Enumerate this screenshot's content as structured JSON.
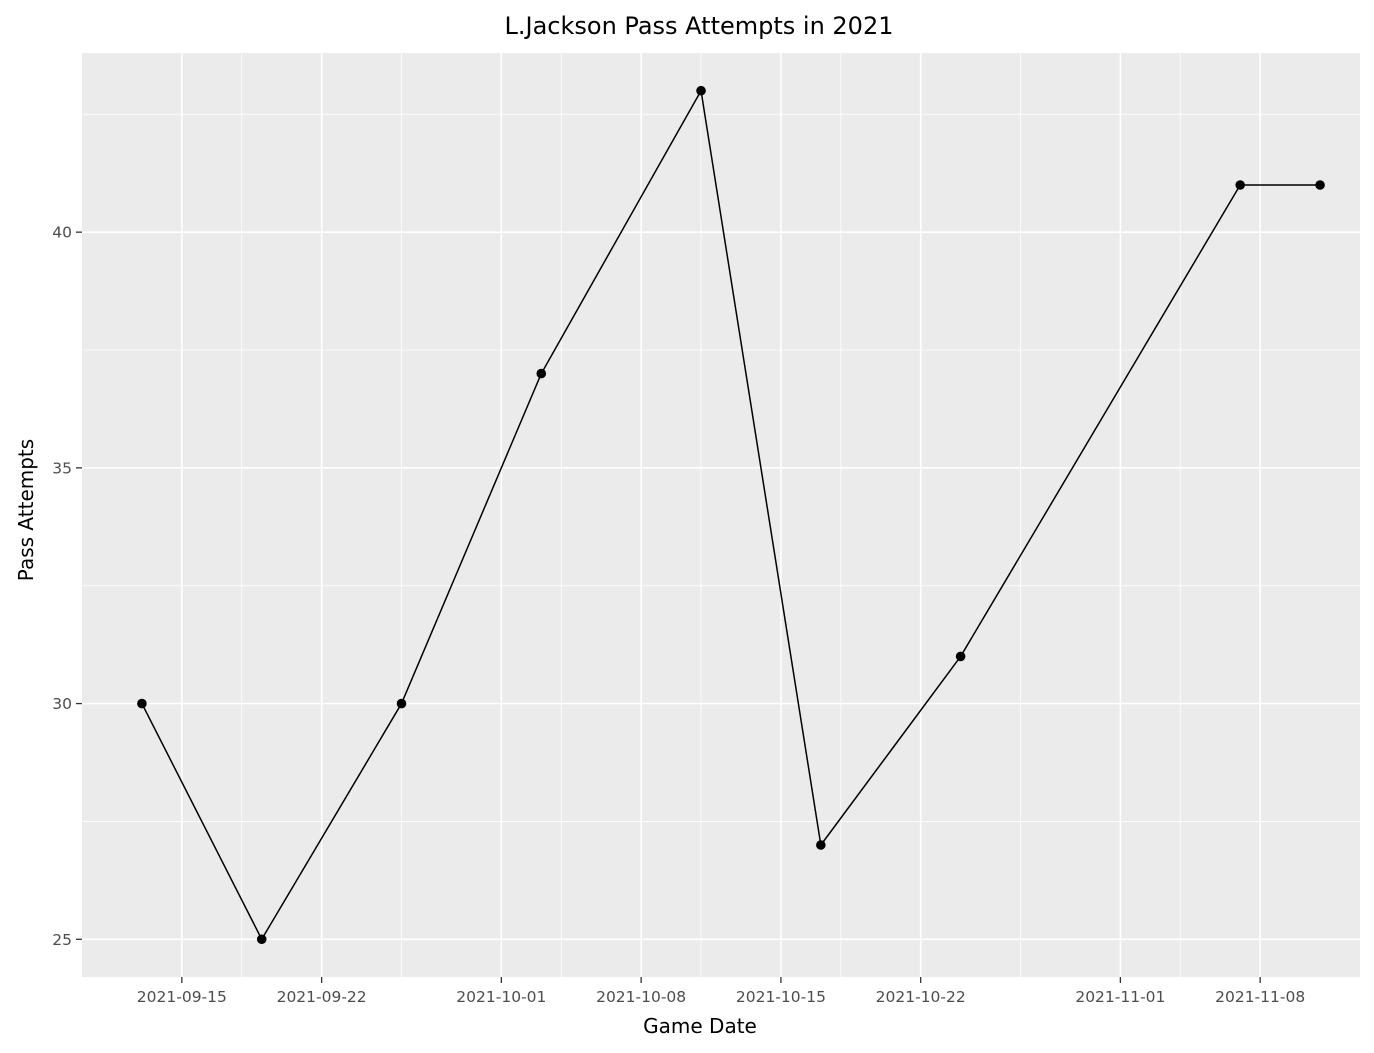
{
  "chart_data": {
    "type": "line",
    "title": "L.Jackson Pass Attempts in 2021",
    "xlabel": "Game Date",
    "ylabel": "Pass Attempts",
    "x_type": "date",
    "xlim": [
      "2021-09-10",
      "2021-11-13"
    ],
    "ylim": [
      24.2,
      43.8
    ],
    "x_ticks": [
      "2021-09-15",
      "2021-09-22",
      "2021-10-01",
      "2021-10-08",
      "2021-10-15",
      "2021-10-22",
      "2021-11-01",
      "2021-11-08"
    ],
    "x_minor_gridlines": [
      "2021-09-18",
      "2021-09-26",
      "2021-10-04",
      "2021-10-11",
      "2021-10-18",
      "2021-10-27",
      "2021-11-04"
    ],
    "y_ticks": [
      25,
      30,
      35,
      40
    ],
    "y_minor_gridlines": [
      27.5,
      32.5,
      37.5,
      42.5
    ],
    "grid": true,
    "legend": "none",
    "colors": {
      "panel": "#ebebeb",
      "grid": "#ffffff",
      "line": "#000000",
      "point": "#000000",
      "tick": "#333333",
      "tick_label": "#4d4d4d"
    },
    "series": [
      {
        "x": [
          "2021-09-13",
          "2021-09-19",
          "2021-09-26",
          "2021-10-03",
          "2021-10-11",
          "2021-10-17",
          "2021-10-24",
          "2021-11-07",
          "2021-11-11"
        ],
        "y": [
          30,
          25,
          30,
          37,
          43,
          27,
          31,
          41,
          41
        ]
      }
    ]
  }
}
